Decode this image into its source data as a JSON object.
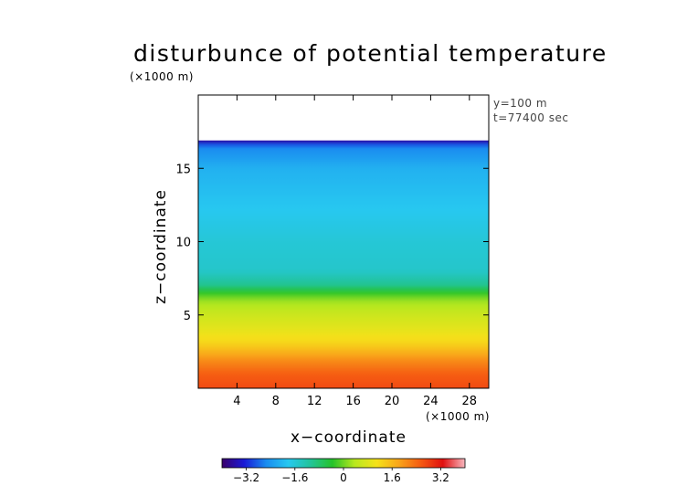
{
  "chart_data": {
    "type": "heatmap",
    "title": "disturbunce of potential temperature",
    "xlabel": "x−coordinate",
    "ylabel": "z−coordinate",
    "x_unit": "(×1000 m)",
    "z_unit": "(×1000 m)",
    "xlim": [
      0,
      30
    ],
    "ylim": [
      0,
      20
    ],
    "x_ticks": [
      "4",
      "8",
      "12",
      "16",
      "20",
      "24",
      "28"
    ],
    "y_ticks": [
      "5",
      "10",
      "15"
    ],
    "x_tick_values": [
      4,
      8,
      12,
      16,
      20,
      24,
      28
    ],
    "y_tick_values": [
      5,
      10,
      15
    ],
    "annotations": [
      "y=100 m",
      "t=77400 sec"
    ],
    "colorbar": {
      "min": -4,
      "max": 4,
      "tick_labels": [
        "−3.2",
        "−1.6",
        "0",
        "1.6",
        "3.2"
      ],
      "tick_values": [
        -3.2,
        -1.6,
        0,
        1.6,
        3.2
      ]
    },
    "field_profile": [
      {
        "z": 0,
        "value": 2.7
      },
      {
        "z": 1,
        "value": 2.5
      },
      {
        "z": 2,
        "value": 2.0
      },
      {
        "z": 3,
        "value": 1.3
      },
      {
        "z": 4,
        "value": 0.9
      },
      {
        "z": 5,
        "value": 0.6
      },
      {
        "z": 6,
        "value": 0.2
      },
      {
        "z": 6.5,
        "value": -0.3
      },
      {
        "z": 7,
        "value": -1.0
      },
      {
        "z": 8,
        "value": -1.5
      },
      {
        "z": 10,
        "value": -1.6
      },
      {
        "z": 12,
        "value": -1.8
      },
      {
        "z": 15,
        "value": -2.1
      },
      {
        "z": 16.5,
        "value": -2.6
      },
      {
        "z": 16.9,
        "value": -3.6
      }
    ],
    "domain_top": 16.9
  },
  "colors": {
    "scale": [
      "#3a006b",
      "#1a1ad6",
      "#1a8cf0",
      "#27c8f0",
      "#22c49a",
      "#25c32a",
      "#b8e81f",
      "#f5e21a",
      "#f9a51a",
      "#f55a12",
      "#e01010",
      "#f8b8c0"
    ]
  }
}
